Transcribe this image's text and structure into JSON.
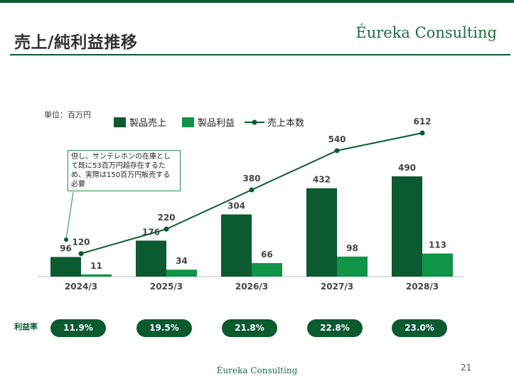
{
  "header": {
    "title": "売上/純利益推移",
    "brand": "Éureka Consulting"
  },
  "chart_data": {
    "type": "bar",
    "categories": [
      "2024/3",
      "2025/3",
      "2026/3",
      "2027/3",
      "2028/3"
    ],
    "series": [
      {
        "name": "製品売上",
        "type": "bar",
        "values": [
          96,
          176,
          304,
          432,
          490
        ],
        "color": "#0b5a30"
      },
      {
        "name": "製品利益",
        "type": "bar",
        "values": [
          11,
          34,
          66,
          98,
          113
        ],
        "color": "#0f9448"
      },
      {
        "name": "売上本数",
        "type": "line",
        "values": [
          120,
          220,
          380,
          540,
          612
        ],
        "color": "#0b5a30"
      }
    ],
    "unit_label": "単位：百万円",
    "legend_position": "top",
    "grid": false,
    "annotation": "但し、サンテレホンの在庫として既に53百万円超存在するため、実際は150百万円販売する必要",
    "margin_label": "利益率",
    "margin_values": [
      "11.9%",
      "19.5%",
      "21.8%",
      "22.8%",
      "23.0%"
    ]
  },
  "footer": {
    "brand": "Éureka Consulting",
    "page_number": "21"
  }
}
